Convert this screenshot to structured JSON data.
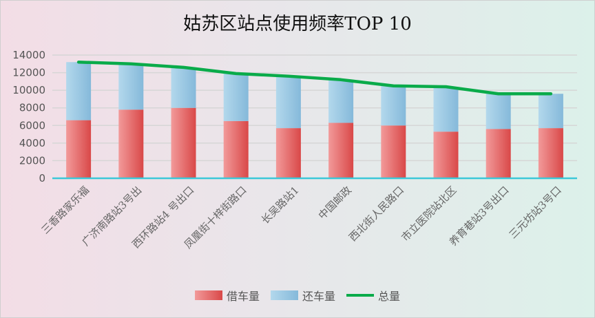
{
  "chart_data": {
    "type": "bar",
    "stacked": true,
    "title": "姑苏区站点使用频率TOP 10",
    "categories": [
      "三香路家乐福",
      "广济南路站3号出",
      "西环路站4 号出口",
      "凤凰街十梓街路口",
      "长吴路站1",
      "中国邮政",
      "西北街人民路口",
      "市立医院站北区",
      "养育巷站3号出口",
      "三元坊站3号口"
    ],
    "series": [
      {
        "name": "借车量",
        "type": "bar",
        "color": "#e05555",
        "values": [
          6600,
          7800,
          8000,
          6500,
          5700,
          6300,
          6000,
          5300,
          5600,
          5700
        ]
      },
      {
        "name": "还车量",
        "type": "bar",
        "color": "#8fc3e0",
        "values": [
          6600,
          5200,
          4600,
          5400,
          5900,
          4900,
          4500,
          5100,
          4000,
          3900
        ]
      },
      {
        "name": "总量",
        "type": "line",
        "color": "#0aab4a",
        "values": [
          13200,
          13000,
          12600,
          11900,
          11600,
          11200,
          10500,
          10400,
          9600,
          9600
        ]
      }
    ],
    "ylim": [
      0,
      14000
    ],
    "yticks": [
      0,
      2000,
      4000,
      6000,
      8000,
      10000,
      12000,
      14000
    ],
    "grid": true,
    "legend": "bottom"
  }
}
